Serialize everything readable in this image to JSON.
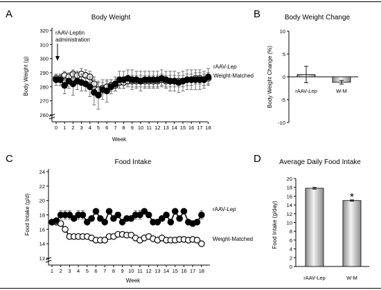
{
  "panels": {
    "A": "A",
    "B": "B",
    "C": "C",
    "D": "D"
  },
  "colors": {
    "filled": "#000000",
    "open": "#ffffff",
    "bar_a_light": "#f2f2f2",
    "bar_a_dark": "#8c8c8c"
  },
  "chart_data": [
    {
      "id": "A",
      "type": "line",
      "title": "Body Weight",
      "xlabel": "Week",
      "ylabel": "Body Weight (g)",
      "x": [
        0,
        0.5,
        1,
        1.5,
        2,
        2.5,
        3,
        3.5,
        4,
        4.5,
        5,
        5.5,
        6,
        6.5,
        7,
        7.5,
        8,
        8.5,
        9,
        9.5,
        10,
        10.5,
        11,
        11.5,
        12,
        12.5,
        13,
        13.5,
        14,
        14.5,
        15,
        15.5,
        16,
        16.5,
        17,
        17.5,
        18
      ],
      "xticks": [
        "0",
        "1",
        "2",
        "3",
        "4",
        "5",
        "6",
        "7",
        "8",
        "9",
        "10",
        "11",
        "12",
        "13",
        "14",
        "15",
        "16",
        "17",
        "18"
      ],
      "yticks": [
        "260",
        "270",
        "280",
        "290",
        "300",
        "310",
        "320"
      ],
      "ylim": [
        255,
        320
      ],
      "axis_break": true,
      "annotation": [
        "rAAV-Leptin",
        "administration"
      ],
      "series": [
        {
          "name": "rAAV-Lep",
          "marker": "filled",
          "values": [
            285,
            285,
            281,
            284,
            282,
            284,
            283,
            282,
            280,
            276,
            274,
            278,
            277,
            280,
            282,
            285,
            285,
            286,
            285,
            285,
            284,
            285,
            285,
            285,
            285,
            286,
            285,
            284,
            284,
            283,
            284,
            285,
            285,
            285,
            285,
            285,
            287
          ],
          "errors": [
            4,
            4,
            6,
            5,
            8,
            6,
            6,
            5,
            7,
            9,
            10,
            7,
            8,
            5,
            5,
            6,
            6,
            6,
            7,
            6,
            7,
            6,
            6,
            6,
            6,
            6,
            6,
            7,
            7,
            7,
            7,
            7,
            7,
            7,
            7,
            6,
            6
          ]
        },
        {
          "name": "Weight-Matched",
          "marker": "open",
          "values": [
            286,
            286,
            288,
            287,
            289,
            288,
            289,
            288,
            287,
            282,
            278,
            279,
            280,
            281,
            281,
            283,
            283,
            284,
            284,
            284,
            284,
            284,
            284,
            284,
            284,
            285,
            284,
            284,
            284,
            284,
            284,
            285,
            285,
            286,
            286,
            285,
            286
          ],
          "errors": [
            3,
            3,
            3,
            3,
            3,
            3,
            4,
            4,
            4,
            5,
            5,
            4,
            4,
            4,
            4,
            4,
            4,
            4,
            4,
            4,
            4,
            4,
            4,
            4,
            4,
            4,
            4,
            4,
            4,
            4,
            4,
            4,
            4,
            4,
            4,
            4,
            4
          ]
        }
      ],
      "legend": [
        "rAAV-Lep",
        "Weight-Matched"
      ]
    },
    {
      "id": "B",
      "type": "bar",
      "title": "Body Weight Change",
      "ylabel": "Body Weight Change (%)",
      "categories": [
        "rAAV-Lep",
        "W-M"
      ],
      "values": [
        0.5,
        -1.2
      ],
      "errors": [
        1.8,
        0.4
      ],
      "yticks": [
        "10",
        "5",
        "0",
        "-5",
        "-10"
      ],
      "ylim": [
        -10,
        10
      ]
    },
    {
      "id": "C",
      "type": "line",
      "title": "Food Intake",
      "xlabel": "Week",
      "ylabel": "Food Intake (g/d)",
      "x": [
        1,
        1.5,
        2,
        2.5,
        3,
        3.5,
        4,
        4.5,
        5,
        5.5,
        6,
        6.5,
        7,
        7.5,
        8,
        8.5,
        9,
        9.5,
        10,
        10.5,
        11,
        11.5,
        12,
        12.5,
        13,
        13.5,
        14,
        14.5,
        15,
        15.5,
        16,
        16.5,
        17,
        17.5,
        18
      ],
      "xticks": [
        "1",
        "2",
        "3",
        "4",
        "5",
        "6",
        "7",
        "8",
        "9",
        "10",
        "11",
        "12",
        "13",
        "14",
        "15",
        "16",
        "17",
        "18"
      ],
      "yticks": [
        "12",
        "14",
        "16",
        "18",
        "20",
        "22",
        "24"
      ],
      "ylim": [
        11,
        24.5
      ],
      "axis_break": true,
      "series": [
        {
          "name": "rAAV-Lep",
          "marker": "filled",
          "values": [
            17.0,
            17.2,
            18.0,
            18.0,
            18.0,
            17.5,
            18.0,
            18.0,
            17.0,
            17.5,
            18.5,
            17.5,
            17.0,
            18.5,
            17.5,
            18.0,
            17.0,
            17.5,
            17.5,
            18.0,
            18.0,
            18.5,
            18.0,
            17.0,
            17.0,
            17.5,
            18.0,
            17.0,
            18.5,
            17.5,
            18.5,
            17.0,
            16.8,
            17.0,
            18.0
          ],
          "errors": [
            0.3,
            0.3,
            0.6,
            0.6,
            0.6,
            0.3,
            0.6,
            0.6,
            0.3,
            0.3,
            0.3,
            0.3,
            0.3,
            0.3,
            0.3,
            0.3,
            0.3,
            0.3,
            0.3,
            0.6,
            0.6,
            0.3,
            0.3,
            0.3,
            0.3,
            0.3,
            0.3,
            0.3,
            0.3,
            0.3,
            0.3,
            0.3,
            0.3,
            0.3,
            0.6
          ]
        },
        {
          "name": "Weight-Matched",
          "marker": "open",
          "values": [
            17.0,
            17.0,
            16.8,
            16.0,
            15.0,
            15.0,
            15.0,
            15.0,
            15.0,
            14.8,
            14.5,
            14.5,
            14.5,
            15.0,
            15.0,
            15.3,
            15.3,
            15.2,
            15.2,
            14.8,
            14.5,
            14.8,
            15.0,
            14.7,
            14.5,
            14.8,
            14.5,
            14.5,
            14.5,
            14.6,
            14.6,
            14.5,
            14.6,
            14.5,
            14.0
          ],
          "errors": [
            0.2,
            0.2,
            0.2,
            0.2,
            0.2,
            0.2,
            0.2,
            0.2,
            0.2,
            0.2,
            0.2,
            0.2,
            0.2,
            0.2,
            0.2,
            0.2,
            0.2,
            0.2,
            0.2,
            0.2,
            0.2,
            0.2,
            0.2,
            0.2,
            0.2,
            0.2,
            0.2,
            0.2,
            0.2,
            0.2,
            0.2,
            0.2,
            0.2,
            0.2,
            0.2
          ]
        }
      ],
      "legend": [
        "rAAV-Lep",
        "Weight-Matched"
      ]
    },
    {
      "id": "D",
      "type": "bar",
      "title": "Average Daily Food Intake",
      "ylabel": "Food Intake (g/day)",
      "categories": [
        "rAAV-Lep",
        "W-M"
      ],
      "values": [
        17.8,
        15.0
      ],
      "errors": [
        0.2,
        0.15
      ],
      "yticks": [
        "0",
        "2",
        "4",
        "6",
        "8",
        "10",
        "12",
        "14",
        "16",
        "18",
        "20"
      ],
      "ylim": [
        0,
        20
      ],
      "significance": "*"
    }
  ]
}
